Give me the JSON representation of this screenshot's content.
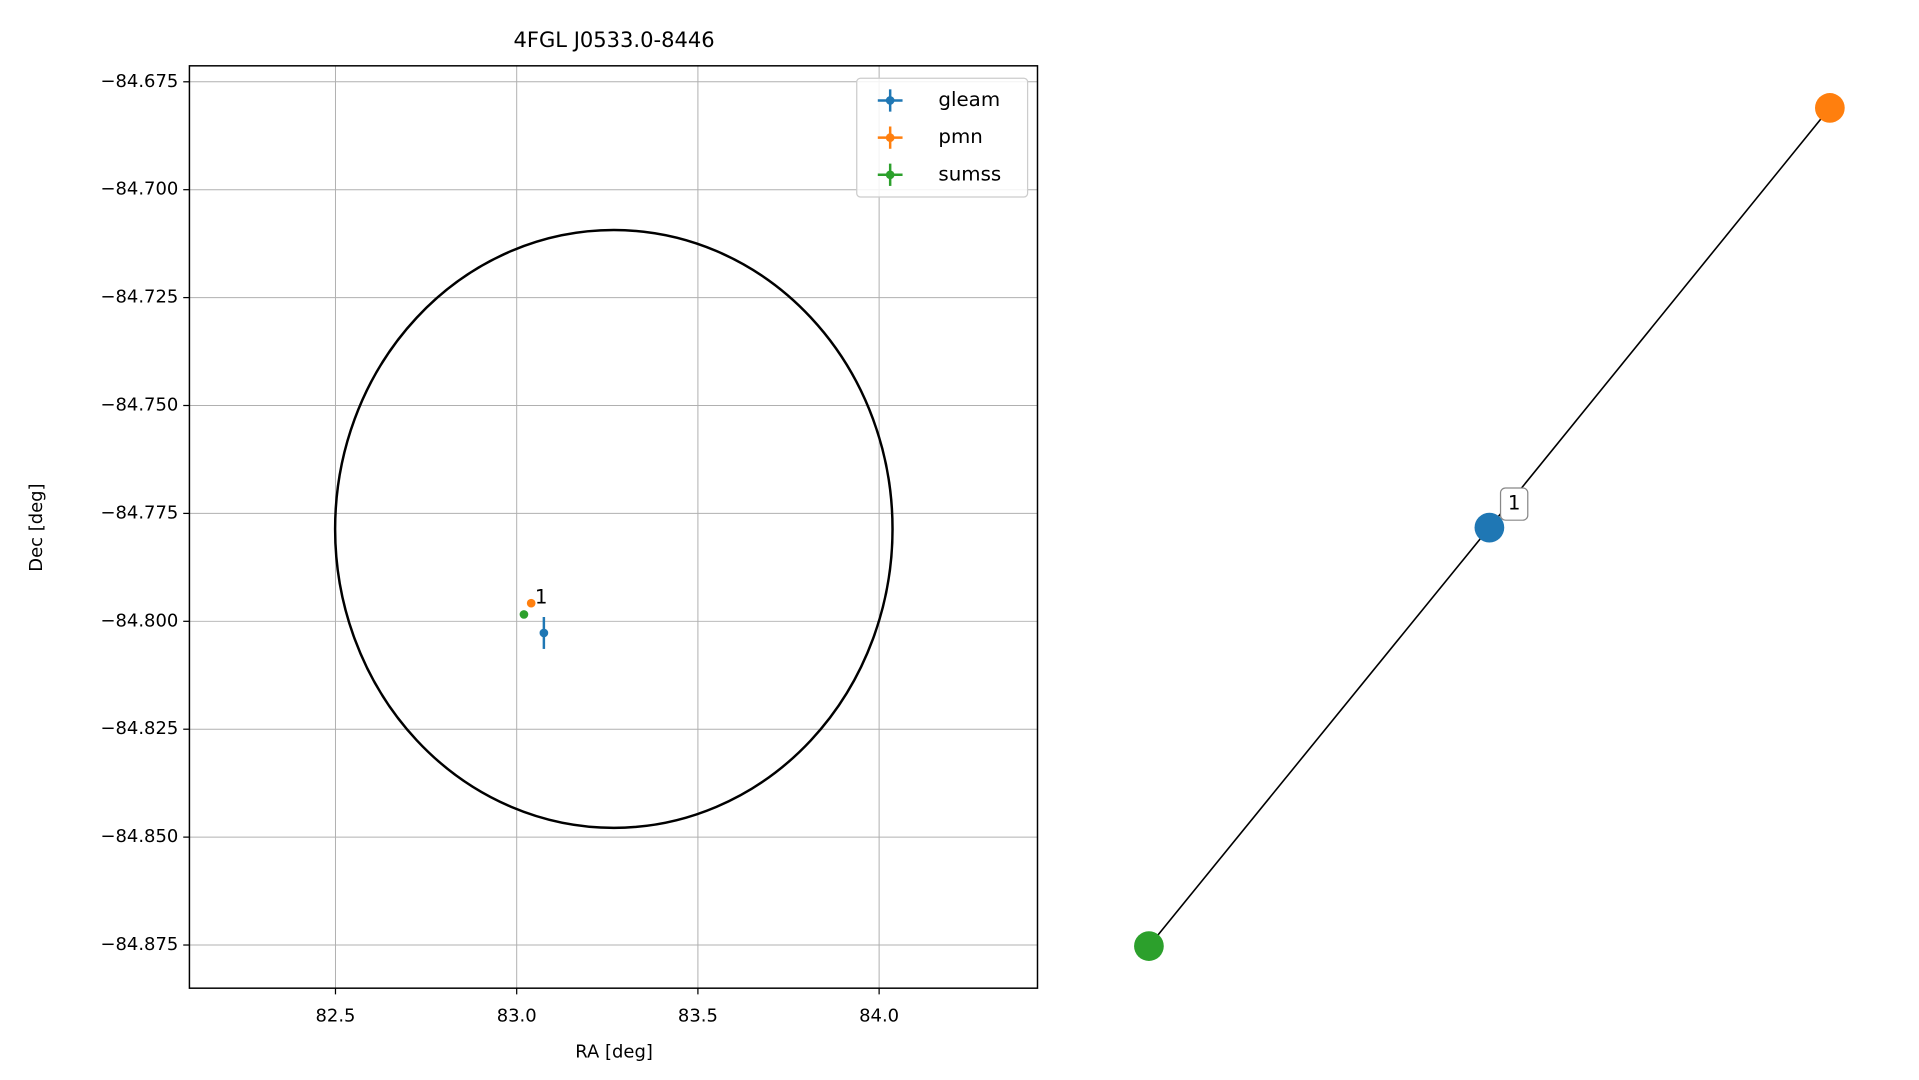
{
  "chart_data": {
    "type": "scatter",
    "title": "4FGL J0533.0-8446",
    "xlabel": "RA [deg]",
    "ylabel": "Dec [deg]",
    "xlim": [
      82.097,
      84.437
    ],
    "ylim": [
      -84.885,
      -84.6713
    ],
    "xticks": [
      82.5,
      {
        "value": 83,
        "label": "83.0"
      },
      83.5,
      {
        "value": 84,
        "label": "84.0"
      }
    ],
    "yticks": [
      {
        "value": -84.675,
        "label": "−84.675"
      },
      {
        "value": -84.7,
        "label": "−84.700"
      },
      {
        "value": -84.725,
        "label": "−84.725"
      },
      {
        "value": -84.75,
        "label": "−84.750"
      },
      {
        "value": -84.775,
        "label": "−84.775"
      },
      {
        "value": -84.8,
        "label": "−84.800"
      },
      {
        "value": -84.825,
        "label": "−84.825"
      },
      {
        "value": -84.85,
        "label": "−84.850"
      },
      {
        "value": -84.875,
        "label": "−84.875"
      }
    ],
    "grid": true,
    "legend": "upper right",
    "series": [
      {
        "name": "gleam",
        "color": "#1f77b4",
        "x": [
          83.075
        ],
        "y": [
          -84.8027
        ],
        "yerr": [
          0.0037
        ]
      },
      {
        "name": "pmn",
        "color": "#ff7f0e",
        "x": [
          83.04
        ],
        "y": [
          -84.7958
        ]
      },
      {
        "name": "sumss",
        "color": "#2ca02c",
        "x": [
          83.02
        ],
        "y": [
          -84.7984
        ]
      }
    ],
    "ellipse": {
      "center": [
        83.268,
        -84.7786
      ],
      "width": 1.538,
      "height": 0.1385
    },
    "annotations": [
      {
        "text": "1",
        "x": 83.04,
        "y": -84.7958
      }
    ]
  },
  "graph": {
    "node_colors": [
      "#ff7f0e",
      "#1f77b4",
      "#2ca02c"
    ],
    "edge_label": "1"
  }
}
